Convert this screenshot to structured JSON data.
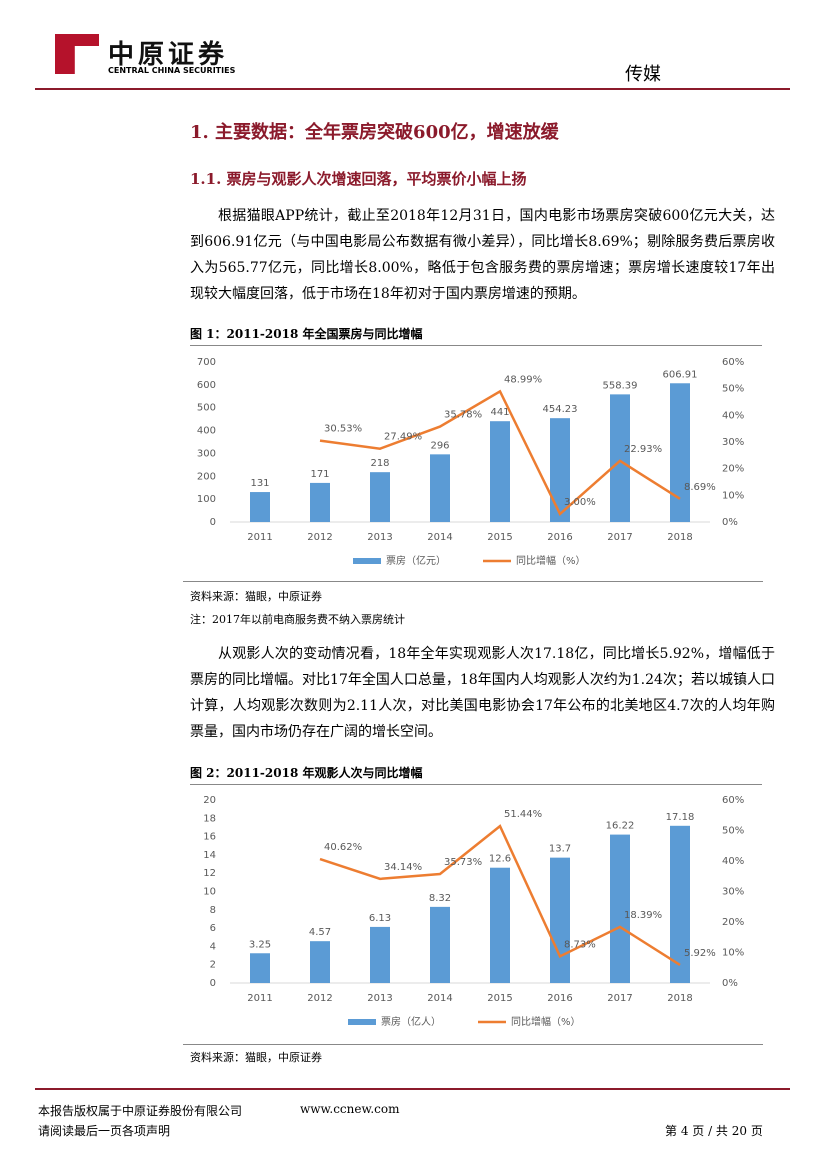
{
  "header": {
    "logo_text": "中原证券",
    "logo_subtext": "CENTRAL CHINA SECURITIES",
    "section": "传媒"
  },
  "heading1": "1. 主要数据：全年票房突破600亿，增速放缓",
  "heading2": "1.1. 票房与观影人次增速回落，平均票价小幅上扬",
  "paragraphs": [
    "根据猫眼APP统计，截止至2018年12月31日，国内电影市场票房突破600亿元大关，达到606.91亿元（与中国电影局公布数据有微小差异），同比增长8.69%；剔除服务费后票房收入为565.77亿元，同比增长8.00%，略低于包含服务费的票房增速；票房增长速度较17年出现较大幅度回落，低于市场在18年初对于国内票房增速的预期。",
    "从观影人次的变动情况看，18年全年实现观影人次17.18亿，同比增长5.92%，增幅低于票房的同比增幅。对比17年全国人口总量，18年国内人均观影人次约为1.24次；若以城镇人口计算，人均观影次数则为2.11人次，对比美国电影协会17年公布的北美地区4.7次的人均年购票量，国内市场仍存在广阔的增长空间。"
  ],
  "figures": [
    {
      "title": "图 1：2011-2018 年全国票房与同比增幅",
      "source": "资料来源：猫眼，中原证券",
      "note": "注：2017年以前电商服务费不纳入票房统计",
      "chart_data": {
        "type": "bar",
        "categories": [
          "2011",
          "2012",
          "2013",
          "2014",
          "2015",
          "2016",
          "2017",
          "2018"
        ],
        "series": [
          {
            "name": "票房（亿元）",
            "type": "bar",
            "color": "#5b9bd5",
            "values": [
              131,
              171,
              218,
              296,
              441,
              454.23,
              558.39,
              606.91
            ]
          },
          {
            "name": "同比增幅（%）",
            "type": "line",
            "axis": "y2",
            "color": "#ed7d31",
            "values": [
              null,
              30.53,
              27.49,
              35.78,
              48.99,
              3.0,
              22.93,
              8.69
            ],
            "value_labels": [
              null,
              "30.53%",
              "27.49%",
              "35.78%",
              "48.99%",
              "3.00%",
              "22.93%",
              "8.69%"
            ]
          }
        ],
        "ylim": [
          0,
          700
        ],
        "yticks": [
          0,
          100,
          200,
          300,
          400,
          500,
          600,
          700
        ],
        "y2lim": [
          0,
          60
        ],
        "y2ticks": [
          {
            "value": 0,
            "label": "0%"
          },
          {
            "value": 10,
            "label": "10%"
          },
          {
            "value": 20,
            "label": "20%"
          },
          {
            "value": 30,
            "label": "30%"
          },
          {
            "value": 40,
            "label": "40%"
          },
          {
            "value": 50,
            "label": "50%"
          },
          {
            "value": 60,
            "label": "60%"
          }
        ],
        "legend": "bottom"
      }
    },
    {
      "title": "图 2：2011-2018 年观影人次与同比增幅",
      "source": "资料来源：猫眼，中原证券",
      "chart_data": {
        "type": "bar",
        "categories": [
          "2011",
          "2012",
          "2013",
          "2014",
          "2015",
          "2016",
          "2017",
          "2018"
        ],
        "series": [
          {
            "name": "票房（亿人）",
            "type": "bar",
            "color": "#5b9bd5",
            "values": [
              3.25,
              4.57,
              6.13,
              8.32,
              12.6,
              13.7,
              16.22,
              17.18
            ]
          },
          {
            "name": "同比增幅（%）",
            "type": "line",
            "axis": "y2",
            "color": "#ed7d31",
            "values": [
              null,
              40.62,
              34.14,
              35.73,
              51.44,
              8.73,
              18.39,
              5.92
            ],
            "value_labels": [
              null,
              "40.62%",
              "34.14%",
              "35.73%",
              "51.44%",
              "8.73%",
              "18.39%",
              "5.92%"
            ]
          }
        ],
        "ylim": [
          0,
          20
        ],
        "yticks": [
          0,
          2,
          4,
          6,
          8,
          10,
          12,
          14,
          16,
          18,
          20
        ],
        "y2lim": [
          0,
          60
        ],
        "y2ticks": [
          {
            "value": 0,
            "label": "0%"
          },
          {
            "value": 10,
            "label": "10%"
          },
          {
            "value": 20,
            "label": "20%"
          },
          {
            "value": 30,
            "label": "30%"
          },
          {
            "value": 40,
            "label": "40%"
          },
          {
            "value": 50,
            "label": "50%"
          },
          {
            "value": 60,
            "label": "60%"
          }
        ],
        "legend": "bottom"
      }
    }
  ],
  "footer": {
    "copyright": "本报告版权属于中原证券股份有限公司",
    "website": "www.ccnew.com",
    "page": "第 4 页 / 共 20 页",
    "disclaimer": "请阅读最后一页各项声明"
  }
}
